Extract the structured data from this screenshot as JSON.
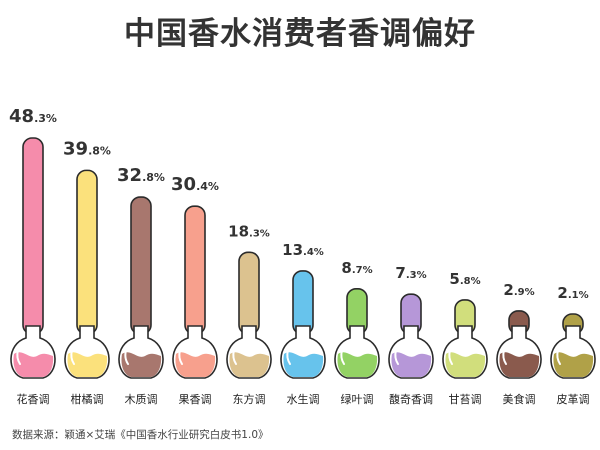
{
  "chart_data": {
    "type": "bar",
    "title": "中国香水消费者香调偏好",
    "categories": [
      "花香调",
      "柑橘调",
      "木质调",
      "果香调",
      "东方调",
      "水生调",
      "绿叶调",
      "馥奇香调",
      "甘苔调",
      "美食调",
      "皮革调"
    ],
    "values": [
      48.3,
      39.8,
      32.8,
      30.4,
      18.3,
      13.4,
      8.7,
      7.3,
      5.8,
      2.9,
      2.1
    ],
    "labels": [
      {
        "int": "48",
        "dec": ".3%"
      },
      {
        "int": "39",
        "dec": ".8%"
      },
      {
        "int": "32",
        "dec": ".8%"
      },
      {
        "int": "30",
        "dec": ".4%"
      },
      {
        "int": "18",
        "dec": ".3%"
      },
      {
        "int": "13",
        "dec": ".4%"
      },
      {
        "int": "8",
        "dec": ".7%"
      },
      {
        "int": "7",
        "dec": ".3%"
      },
      {
        "int": "5",
        "dec": ".8%"
      },
      {
        "int": "2",
        "dec": ".9%"
      },
      {
        "int": "2",
        "dec": ".1%"
      }
    ],
    "colors": [
      "#f58cab",
      "#fbe17c",
      "#a8776e",
      "#f7a08d",
      "#dcc28f",
      "#67c3ec",
      "#93d264",
      "#b697d8",
      "#d1de7c",
      "#8a5a4d",
      "#b0a148"
    ],
    "xlabel": "",
    "ylabel": "",
    "ylim": [
      0,
      50
    ],
    "grid": false,
    "legend": "none"
  },
  "source": "数据来源：颖通×艾瑞《中国香水行业研究白皮书1.0》"
}
